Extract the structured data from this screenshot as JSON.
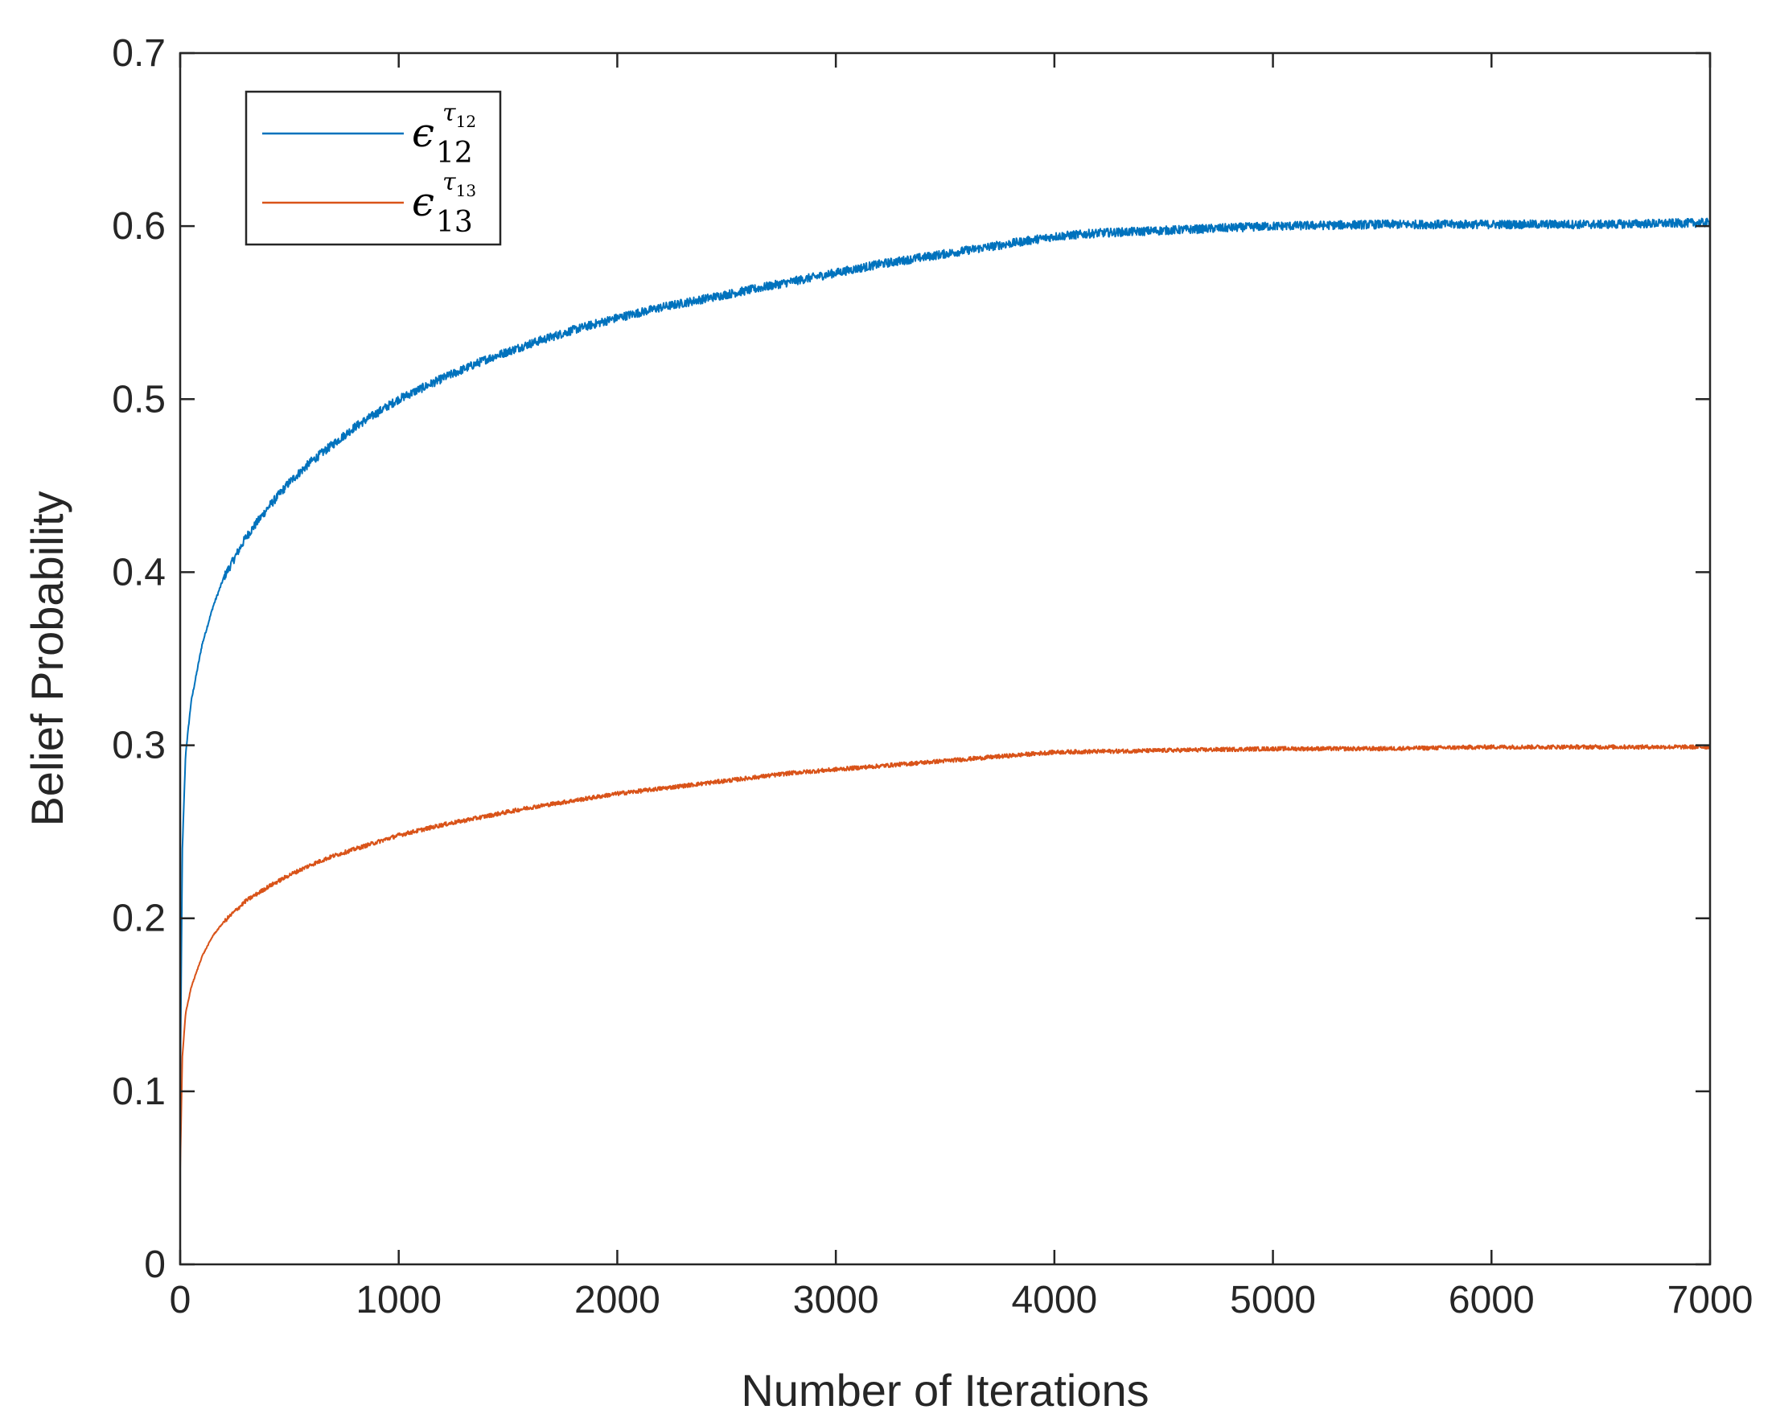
{
  "chart_data": {
    "type": "line",
    "title": "",
    "xlabel": "Number of Iterations",
    "ylabel": "Belief Probability",
    "xlim": [
      0,
      7000
    ],
    "ylim": [
      0,
      0.7
    ],
    "xticks": [
      0,
      1000,
      2000,
      3000,
      4000,
      5000,
      6000,
      7000
    ],
    "xtick_labels": [
      "0",
      "1000",
      "2000",
      "3000",
      "4000",
      "5000",
      "6000",
      "7000"
    ],
    "yticks": [
      0,
      0.1,
      0.2,
      0.3,
      0.4,
      0.5,
      0.6,
      0.7
    ],
    "ytick_labels": [
      "0",
      "0.1",
      "0.2",
      "0.3",
      "0.4",
      "0.5",
      "0.6",
      "0.7"
    ],
    "grid": false,
    "legend_position": "top-left",
    "series": [
      {
        "name": "ε_12^τ_12",
        "legend": {
          "symbol": "ϵ",
          "subscript": "12",
          "sup_symbol": "τ",
          "sup_subscript": "12"
        },
        "color": "#0072BD",
        "noise": 0.0025,
        "x": [
          0,
          10,
          25,
          50,
          100,
          150,
          200,
          300,
          400,
          500,
          600,
          700,
          800,
          900,
          1000,
          1200,
          1400,
          1600,
          1800,
          2000,
          2200,
          2400,
          2600,
          2800,
          3000,
          3200,
          3400,
          3600,
          3800,
          4000,
          4200,
          4400,
          4600,
          4800,
          5000,
          5500,
          6000,
          6500,
          7000
        ],
        "y": [
          0.1,
          0.24,
          0.295,
          0.325,
          0.358,
          0.38,
          0.397,
          0.42,
          0.437,
          0.452,
          0.464,
          0.474,
          0.484,
          0.492,
          0.5,
          0.512,
          0.523,
          0.532,
          0.54,
          0.547,
          0.553,
          0.558,
          0.563,
          0.568,
          0.573,
          0.578,
          0.582,
          0.586,
          0.59,
          0.594,
          0.596,
          0.597,
          0.598,
          0.599,
          0.6,
          0.601,
          0.601,
          0.601,
          0.602
        ]
      },
      {
        "name": "ε_13^τ_13",
        "legend": {
          "symbol": "ϵ",
          "subscript": "13",
          "sup_symbol": "τ",
          "sup_subscript": "13"
        },
        "color": "#D95319",
        "noise": 0.0012,
        "x": [
          0,
          10,
          25,
          50,
          100,
          150,
          200,
          300,
          400,
          500,
          600,
          700,
          800,
          900,
          1000,
          1200,
          1400,
          1600,
          1800,
          2000,
          2200,
          2400,
          2600,
          2800,
          3000,
          3200,
          3400,
          3600,
          3800,
          4000,
          4500,
          5000,
          5500,
          6000,
          6500,
          7000
        ],
        "y": [
          0.055,
          0.12,
          0.145,
          0.16,
          0.178,
          0.19,
          0.198,
          0.21,
          0.218,
          0.225,
          0.231,
          0.236,
          0.24,
          0.244,
          0.248,
          0.254,
          0.259,
          0.264,
          0.268,
          0.272,
          0.275,
          0.278,
          0.281,
          0.284,
          0.286,
          0.288,
          0.29,
          0.292,
          0.294,
          0.296,
          0.297,
          0.298,
          0.298,
          0.299,
          0.299,
          0.299
        ]
      }
    ]
  }
}
